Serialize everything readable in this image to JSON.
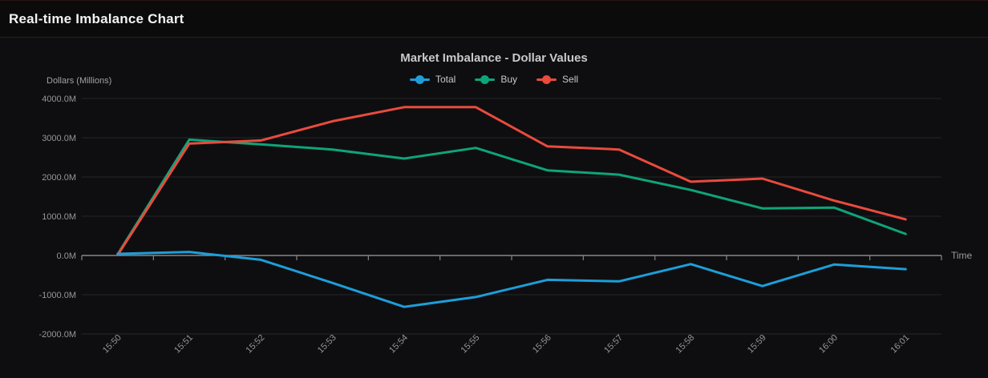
{
  "header": {
    "title": "Real-time Imbalance Chart"
  },
  "chart": {
    "title": "Market Imbalance - Dollar Values",
    "y_axis_name": "Dollars (Millions)",
    "x_axis_name": "Time"
  },
  "colors": {
    "background": "#0e0e10",
    "header_background": "#0b0b0c",
    "divider": "#331a1a",
    "grid_line": "#26262a",
    "axis_line": "#85858c",
    "tick_label": "#96969c",
    "title_text": "#c8c8cd",
    "header_text": "#f2f2f3",
    "total_line": "#1d9ed9",
    "buy_line": "#0ea47a",
    "sell_line": "#e94b3d"
  },
  "chart_data": {
    "type": "line",
    "title": "Market Imbalance - Dollar Values",
    "xlabel": "Time",
    "ylabel": "Dollars (Millions)",
    "categories": [
      "15:50",
      "15:51",
      "15:52",
      "15:53",
      "15:54",
      "15:55",
      "15:56",
      "15:57",
      "15:58",
      "15:59",
      "16:00",
      "16:01"
    ],
    "series": [
      {
        "name": "Total",
        "color": "#1d9ed9",
        "values": [
          40,
          90,
          -110,
          -700,
          -1310,
          -1060,
          -620,
          -660,
          -220,
          -780,
          -230,
          -350
        ]
      },
      {
        "name": "Buy",
        "color": "#0ea47a",
        "values": [
          30,
          2950,
          2830,
          2700,
          2470,
          2740,
          2170,
          2060,
          1670,
          1200,
          1220,
          550
        ]
      },
      {
        "name": "Sell",
        "color": "#e94b3d",
        "values": [
          10,
          2850,
          2930,
          3420,
          3780,
          3780,
          2780,
          2700,
          1880,
          1960,
          1400,
          920
        ]
      }
    ],
    "ylim": [
      -2000,
      4000
    ],
    "ytick_step": 1000,
    "ytick_suffix": "M",
    "grid": true,
    "legend_position": "top",
    "legend_entries": [
      "Total",
      "Buy",
      "Sell"
    ],
    "x_label_rotation": -45
  }
}
